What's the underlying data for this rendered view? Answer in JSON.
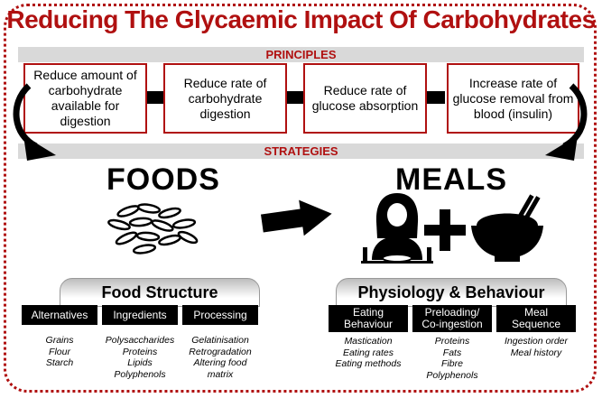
{
  "title": "Reducing The Glycaemic Impact Of Carbohydrates",
  "principles_label": "PRINCIPLES",
  "strategies_label": "STRATEGIES",
  "principles": [
    "Reduce amount of carbohydrate available for digestion",
    "Reduce rate of carbohydrate digestion",
    "Reduce rate of glucose absorption",
    "Increase rate of glucose removal from blood (insulin)"
  ],
  "foods": {
    "heading": "FOODS",
    "panel_title": "Food Structure",
    "categories": [
      {
        "label": "Alternatives",
        "items": [
          "Grains",
          "Flour",
          "Starch"
        ]
      },
      {
        "label": "Ingredients",
        "items": [
          "Polysaccharides",
          "Proteins",
          "Lipids",
          "Polyphenols"
        ]
      },
      {
        "label": "Processing",
        "items": [
          "Gelatinisation",
          "Retrogradation",
          "Altering food",
          "matrix"
        ]
      }
    ]
  },
  "meals": {
    "heading": "MEALS",
    "panel_title": "Physiology & Behaviour",
    "categories": [
      {
        "label_lines": [
          "Eating",
          "Behaviour"
        ],
        "items": [
          "Mastication",
          "Eating rates",
          "Eating methods"
        ]
      },
      {
        "label_lines": [
          "Preloading/",
          "Co-ingestion"
        ],
        "items": [
          "Proteins",
          "Fats",
          "Fibre",
          "Polyphenols"
        ]
      },
      {
        "label_lines": [
          "Meal",
          "Sequence"
        ],
        "items": [
          "Ingestion order",
          "Meal history"
        ]
      }
    ]
  },
  "icons": [
    "rice-grains-icon",
    "right-arrow-icon",
    "person-eating-icon",
    "plus-icon",
    "rice-bowl-icon"
  ],
  "colors": {
    "accent": "#b01010",
    "band": "#d9d9d9"
  }
}
